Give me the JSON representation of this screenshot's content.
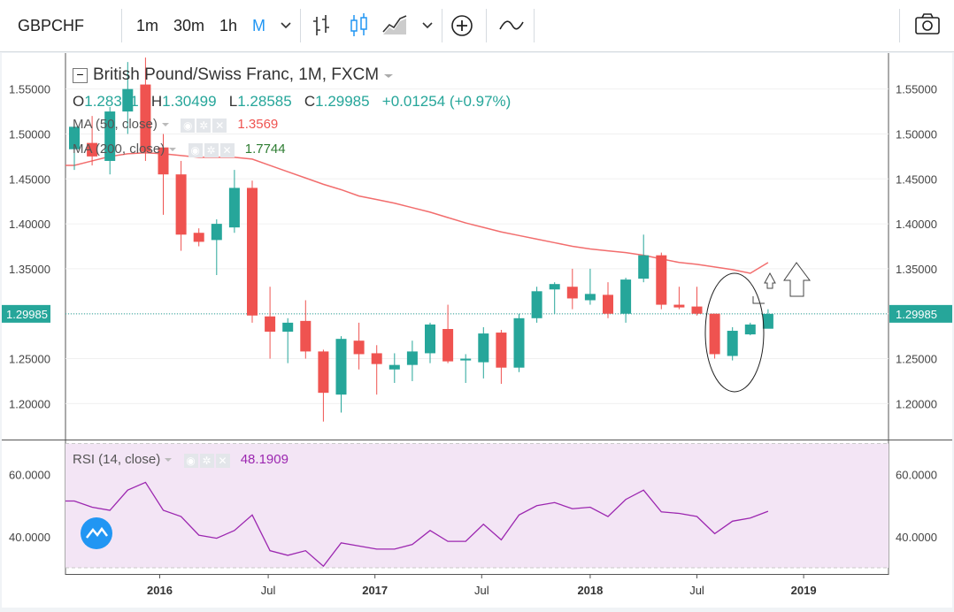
{
  "toolbar": {
    "symbol": "GBPCHF",
    "timeframes": [
      "1m",
      "30m",
      "1h",
      "M"
    ],
    "active_timeframe": "M",
    "icons": [
      "chevron-down-icon",
      "bar-chart-icon",
      "candles-icon",
      "area-chart-icon",
      "chevron-down-icon",
      "add-indicator-icon",
      "compare-icon",
      "camera-icon"
    ]
  },
  "legend": {
    "title": "British Pound/Swiss Franc, 1M, FXCM",
    "o_label": "O",
    "o_val": "1.28331",
    "h_label": "H",
    "h_val": "1.30499",
    "l_label": "L",
    "l_val": "1.28585",
    "c_label": "C",
    "c_val": "1.29985",
    "change": "+0.01254 (+0.97%)",
    "ma50_label": "MA (50, close)",
    "ma50_val": "1.3569",
    "ma200_label": "MA (200, close)",
    "ma200_val": "1.7744",
    "rsi_label": "RSI (14, close)",
    "rsi_val": "48.1909"
  },
  "colors": {
    "up": "#26a69a",
    "down": "#ef5350",
    "ma": "#f26d6d",
    "rsi": "#9c27b0",
    "rsi_band": "#f3e5f5",
    "price_line": "#26a69a"
  },
  "chart_data": [
    {
      "type": "candlestick",
      "title": "British Pound/Swiss Franc, 1M, FXCM",
      "y_ticks": [
        "1.55000",
        "1.50000",
        "1.45000",
        "1.40000",
        "1.35000",
        "1.30000",
        "1.25000",
        "1.20000"
      ],
      "x_ticks": [
        "2016",
        "Jul",
        "2017",
        "Jul",
        "2018",
        "Jul",
        "2019"
      ],
      "current_price": "1.29985",
      "ylim": [
        1.16,
        1.59
      ],
      "candles": [
        {
          "o": 1.483,
          "h": 1.51,
          "l": 1.46,
          "c": 1.508
        },
        {
          "o": 1.49,
          "h": 1.52,
          "l": 1.465,
          "c": 1.475
        },
        {
          "o": 1.47,
          "h": 1.53,
          "l": 1.455,
          "c": 1.525
        },
        {
          "o": 1.525,
          "h": 1.58,
          "l": 1.5,
          "c": 1.55
        },
        {
          "o": 1.555,
          "h": 1.585,
          "l": 1.47,
          "c": 1.48
        },
        {
          "o": 1.485,
          "h": 1.5,
          "l": 1.41,
          "c": 1.455
        },
        {
          "o": 1.455,
          "h": 1.47,
          "l": 1.37,
          "c": 1.388
        },
        {
          "o": 1.39,
          "h": 1.395,
          "l": 1.375,
          "c": 1.38
        },
        {
          "o": 1.382,
          "h": 1.405,
          "l": 1.343,
          "c": 1.4
        },
        {
          "o": 1.396,
          "h": 1.46,
          "l": 1.39,
          "c": 1.44
        },
        {
          "o": 1.44,
          "h": 1.448,
          "l": 1.29,
          "c": 1.298
        },
        {
          "o": 1.297,
          "h": 1.33,
          "l": 1.25,
          "c": 1.28
        },
        {
          "o": 1.28,
          "h": 1.295,
          "l": 1.245,
          "c": 1.29
        },
        {
          "o": 1.292,
          "h": 1.315,
          "l": 1.25,
          "c": 1.258
        },
        {
          "o": 1.258,
          "h": 1.26,
          "l": 1.18,
          "c": 1.212
        },
        {
          "o": 1.21,
          "h": 1.275,
          "l": 1.19,
          "c": 1.272
        },
        {
          "o": 1.27,
          "h": 1.29,
          "l": 1.238,
          "c": 1.255
        },
        {
          "o": 1.256,
          "h": 1.265,
          "l": 1.21,
          "c": 1.244
        },
        {
          "o": 1.238,
          "h": 1.256,
          "l": 1.223,
          "c": 1.243
        },
        {
          "o": 1.243,
          "h": 1.27,
          "l": 1.225,
          "c": 1.258
        },
        {
          "o": 1.256,
          "h": 1.29,
          "l": 1.245,
          "c": 1.288
        },
        {
          "o": 1.283,
          "h": 1.31,
          "l": 1.245,
          "c": 1.247
        },
        {
          "o": 1.248,
          "h": 1.255,
          "l": 1.223,
          "c": 1.25
        },
        {
          "o": 1.246,
          "h": 1.285,
          "l": 1.228,
          "c": 1.278
        },
        {
          "o": 1.279,
          "h": 1.282,
          "l": 1.222,
          "c": 1.24
        },
        {
          "o": 1.24,
          "h": 1.3,
          "l": 1.235,
          "c": 1.295
        },
        {
          "o": 1.295,
          "h": 1.33,
          "l": 1.29,
          "c": 1.325
        },
        {
          "o": 1.327,
          "h": 1.335,
          "l": 1.3,
          "c": 1.333
        },
        {
          "o": 1.33,
          "h": 1.35,
          "l": 1.305,
          "c": 1.317
        },
        {
          "o": 1.315,
          "h": 1.35,
          "l": 1.31,
          "c": 1.322
        },
        {
          "o": 1.321,
          "h": 1.335,
          "l": 1.295,
          "c": 1.3
        },
        {
          "o": 1.3,
          "h": 1.34,
          "l": 1.29,
          "c": 1.338
        },
        {
          "o": 1.339,
          "h": 1.388,
          "l": 1.335,
          "c": 1.365
        },
        {
          "o": 1.365,
          "h": 1.368,
          "l": 1.305,
          "c": 1.31
        },
        {
          "o": 1.31,
          "h": 1.33,
          "l": 1.305,
          "c": 1.307
        },
        {
          "o": 1.308,
          "h": 1.33,
          "l": 1.298,
          "c": 1.3
        },
        {
          "o": 1.3,
          "h": 1.3,
          "l": 1.25,
          "c": 1.255
        },
        {
          "o": 1.253,
          "h": 1.285,
          "l": 1.248,
          "c": 1.281
        },
        {
          "o": 1.277,
          "h": 1.29,
          "l": 1.276,
          "c": 1.288
        },
        {
          "o": 1.2833,
          "h": 1.305,
          "l": 1.2858,
          "c": 1.2998
        }
      ],
      "ma50": [
        1.465,
        1.47,
        1.475,
        1.478,
        1.479,
        1.478,
        1.476,
        1.474,
        1.474,
        1.474,
        1.472,
        1.465,
        1.458,
        1.451,
        1.444,
        1.438,
        1.431,
        1.427,
        1.423,
        1.418,
        1.413,
        1.407,
        1.401,
        1.396,
        1.391,
        1.387,
        1.383,
        1.379,
        1.375,
        1.372,
        1.37,
        1.368,
        1.365,
        1.361,
        1.357,
        1.355,
        1.352,
        1.349,
        1.345,
        1.3569
      ]
    },
    {
      "type": "line",
      "title": "RSI (14, close)",
      "y_ticks": [
        "60.0000",
        "40.0000"
      ],
      "ylim": [
        28,
        71
      ],
      "band": [
        30,
        70
      ],
      "values": [
        51.5,
        49.5,
        48.5,
        55,
        57.5,
        48.5,
        46.5,
        40.5,
        39.5,
        42,
        47,
        35.5,
        34,
        35.5,
        30.5,
        38,
        37,
        36,
        36,
        37.5,
        42,
        38.5,
        38.5,
        44,
        39,
        47,
        50,
        51,
        49,
        49.5,
        46.5,
        52,
        55,
        48,
        47.5,
        46.5,
        41,
        45,
        46,
        48.1909
      ]
    }
  ]
}
